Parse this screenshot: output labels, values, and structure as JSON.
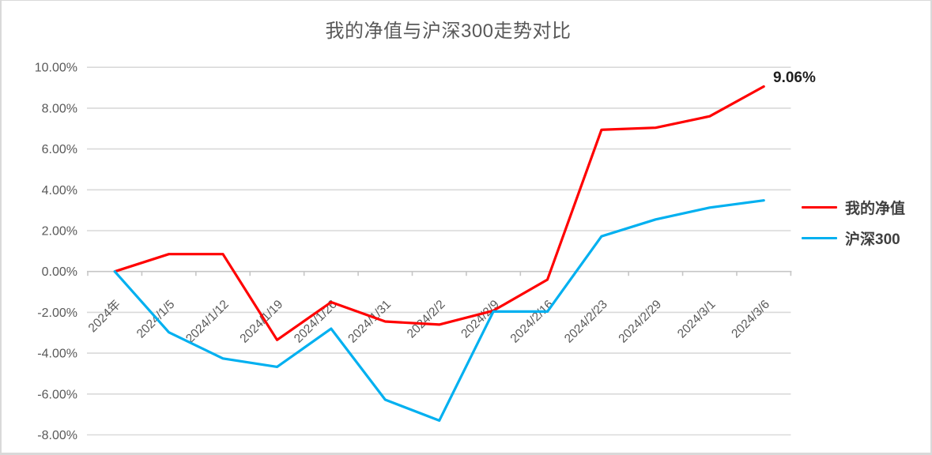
{
  "title": "我的净值与沪深300走势对比",
  "data_label": {
    "text": "9.06%"
  },
  "legend": {
    "items": [
      {
        "label": "我的净值",
        "color": "#ff0000"
      },
      {
        "label": "沪深300",
        "color": "#00b0f0"
      }
    ]
  },
  "colors": {
    "series_my_networth": "#ff0000",
    "series_hs300": "#00b0f0",
    "gridline": "#d9d9d9",
    "axis": "#c6c6c6",
    "tick_text": "#595959",
    "frame_border": "#d9d9d9",
    "data_label_text": "#1f1f1f"
  },
  "chart_data": {
    "type": "line",
    "title": "我的净值与沪深300走势对比",
    "categories": [
      "2024年",
      "2024/1/5",
      "2024/1/12",
      "2024/1/19",
      "2024/1/26",
      "2024/1/31",
      "2024/2/2",
      "2024/2/9",
      "2024/2/16",
      "2024/2/23",
      "2024/2/29",
      "2024/3/1",
      "2024/3/6"
    ],
    "series": [
      {
        "name": "我的净值",
        "color": "#ff0000",
        "values": [
          0.0,
          0.85,
          0.85,
          -3.35,
          -1.5,
          -2.45,
          -2.6,
          -1.92,
          -0.4,
          6.94,
          7.04,
          7.6,
          9.06
        ]
      },
      {
        "name": "沪深300",
        "color": "#00b0f0",
        "values": [
          0.0,
          -2.98,
          -4.26,
          -4.67,
          -2.8,
          -6.28,
          -7.3,
          -1.96,
          -1.96,
          1.72,
          2.55,
          3.13,
          3.48
        ]
      }
    ],
    "xlabel": "",
    "ylabel": "",
    "ylim": [
      -8,
      10
    ],
    "ytick_step": 2,
    "ytick_labels": [
      "10.00%",
      "8.00%",
      "6.00%",
      "4.00%",
      "2.00%",
      "0.00%",
      "-2.00%",
      "-4.00%",
      "-6.00%",
      "-8.00%"
    ],
    "grid": true,
    "legend_position": "right",
    "annotations": [
      {
        "text": "9.06%",
        "series": "我的净值",
        "category": "2024/3/6"
      }
    ]
  }
}
